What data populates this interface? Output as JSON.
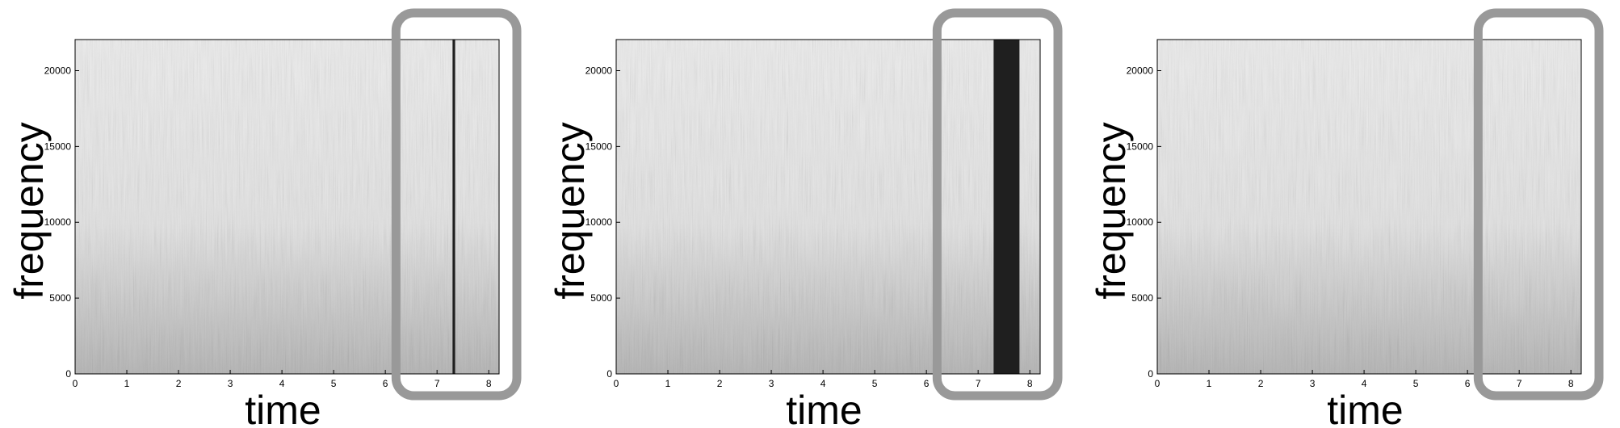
{
  "figure": {
    "description_free": true,
    "highlight_color": "#999999",
    "spectrogram_light": "#ececec",
    "spectrogram_dark": "#1f1f1f"
  },
  "chart_data": [
    {
      "type": "heatmap",
      "xlabel": "time",
      "ylabel": "frequency",
      "xlim": [
        0,
        8.2
      ],
      "ylim": [
        0,
        22050
      ],
      "x_ticks": [
        0,
        1,
        2,
        3,
        4,
        5,
        6,
        7,
        8
      ],
      "y_ticks": [
        0,
        5000,
        10000,
        15000,
        20000
      ],
      "highlight_region": {
        "x_start": 6.3,
        "x_end": 8.2
      },
      "dark_band": {
        "x_start": 7.3,
        "x_end": 7.35
      },
      "grid": false
    },
    {
      "type": "heatmap",
      "xlabel": "time",
      "ylabel": "frequency",
      "xlim": [
        0,
        8.2
      ],
      "ylim": [
        0,
        22050
      ],
      "x_ticks": [
        0,
        1,
        2,
        3,
        4,
        5,
        6,
        7,
        8
      ],
      "y_ticks": [
        0,
        5000,
        10000,
        15000,
        20000
      ],
      "highlight_region": {
        "x_start": 6.3,
        "x_end": 8.2
      },
      "dark_band": {
        "x_start": 7.3,
        "x_end": 7.8
      },
      "grid": false
    },
    {
      "type": "heatmap",
      "xlabel": "time",
      "ylabel": "frequency",
      "xlim": [
        0,
        8.2
      ],
      "ylim": [
        0,
        22050
      ],
      "x_ticks": [
        0,
        1,
        2,
        3,
        4,
        5,
        6,
        7,
        8
      ],
      "y_ticks": [
        0,
        5000,
        10000,
        15000,
        20000
      ],
      "highlight_region": {
        "x_start": 6.3,
        "x_end": 8.2
      },
      "dark_band": null,
      "grid": false
    }
  ]
}
